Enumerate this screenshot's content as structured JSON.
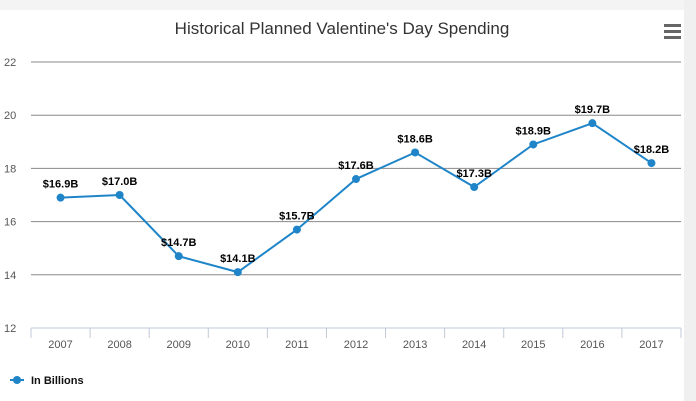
{
  "chart_data": {
    "type": "line",
    "title": "Historical Planned Valentine's Day Spending",
    "categories": [
      "2007",
      "2008",
      "2009",
      "2010",
      "2011",
      "2012",
      "2013",
      "2014",
      "2015",
      "2016",
      "2017"
    ],
    "series": [
      {
        "name": "In Billions",
        "color": "#1f85c8",
        "values": [
          16.9,
          17.0,
          14.7,
          14.1,
          15.7,
          17.6,
          18.6,
          17.3,
          18.9,
          19.7,
          18.2
        ],
        "labels": [
          "$16.9B",
          "$17.0B",
          "$14.7B",
          "$14.1B",
          "$15.7B",
          "$17.6B",
          "$18.6B",
          "$17.3B",
          "$18.9B",
          "$19.7B",
          "$18.2B"
        ]
      }
    ],
    "ylim": [
      12,
      22
    ],
    "yticks": [
      12,
      14,
      16,
      18,
      20,
      22
    ],
    "grid": true,
    "legend": "bottom-left",
    "xlabel": "",
    "ylabel": ""
  },
  "menu_icon": "hamburger-menu-icon"
}
